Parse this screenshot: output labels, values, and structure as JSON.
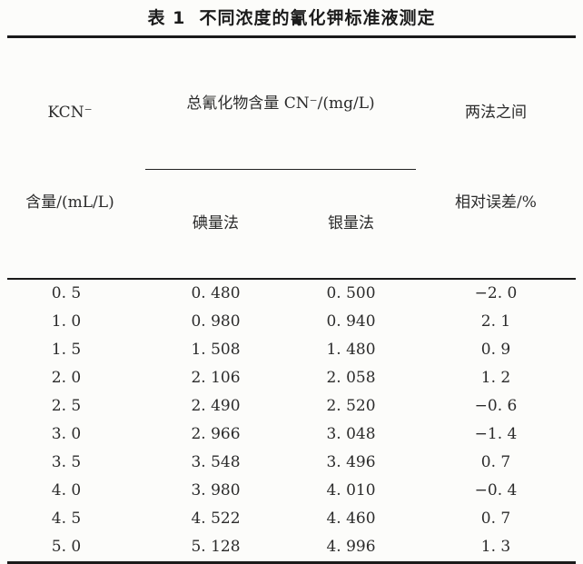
{
  "title": "表 1  不同浓度的氰化钾标准液测定",
  "table": {
    "header": {
      "kcn_line1": "KCN⁻",
      "kcn_line2": "含量/(mL/L)",
      "group_label": "总氰化物含量 CN⁻/(mg/L)",
      "method_iodine": "碘量法",
      "method_silver": "银量法",
      "error_line1": "两法之间",
      "error_line2": "相对误差/%"
    },
    "rows": [
      {
        "kcn": "0. 5",
        "iodine": "0. 480",
        "silver": "0. 500",
        "error": "−2. 0"
      },
      {
        "kcn": "1. 0",
        "iodine": "0. 980",
        "silver": "0. 940",
        "error": "2. 1"
      },
      {
        "kcn": "1. 5",
        "iodine": "1. 508",
        "silver": "1. 480",
        "error": "0. 9"
      },
      {
        "kcn": "2. 0",
        "iodine": "2. 106",
        "silver": "2. 058",
        "error": "1. 2"
      },
      {
        "kcn": "2. 5",
        "iodine": "2. 490",
        "silver": "2. 520",
        "error": "−0. 6"
      },
      {
        "kcn": "3. 0",
        "iodine": "2. 966",
        "silver": "3. 048",
        "error": "−1. 4"
      },
      {
        "kcn": "3. 5",
        "iodine": "3. 548",
        "silver": "3. 496",
        "error": "0. 7"
      },
      {
        "kcn": "4. 0",
        "iodine": "3. 980",
        "silver": "4. 010",
        "error": "−0. 4"
      },
      {
        "kcn": "4. 5",
        "iodine": "4. 522",
        "silver": "4. 460",
        "error": "0. 7"
      },
      {
        "kcn": "5. 0",
        "iodine": "5. 128",
        "silver": "4. 996",
        "error": "1. 3"
      }
    ]
  },
  "chart_data": {
    "type": "table",
    "title": "表 1 不同浓度的氰化钾标准液测定",
    "columns": [
      "KCN⁻ 含量/(mL/L)",
      "总氰化物含量 CN⁻/(mg/L) 碘量法",
      "总氰化物含量 CN⁻/(mg/L) 银量法",
      "两法之间 相对误差/%"
    ],
    "rows": [
      [
        0.5,
        0.48,
        0.5,
        -2.0
      ],
      [
        1.0,
        0.98,
        0.94,
        2.1
      ],
      [
        1.5,
        1.508,
        1.48,
        0.9
      ],
      [
        2.0,
        2.106,
        2.058,
        1.2
      ],
      [
        2.5,
        2.49,
        2.52,
        -0.6
      ],
      [
        3.0,
        2.966,
        3.048,
        -1.4
      ],
      [
        3.5,
        3.548,
        3.496,
        0.7
      ],
      [
        4.0,
        3.98,
        4.01,
        -0.4
      ],
      [
        4.5,
        4.522,
        4.46,
        0.7
      ],
      [
        5.0,
        5.128,
        4.996,
        1.3
      ]
    ]
  },
  "colors": {
    "background": "#fcfcfa",
    "text": "#2b2b2b",
    "rule": "#1a1a1a"
  }
}
